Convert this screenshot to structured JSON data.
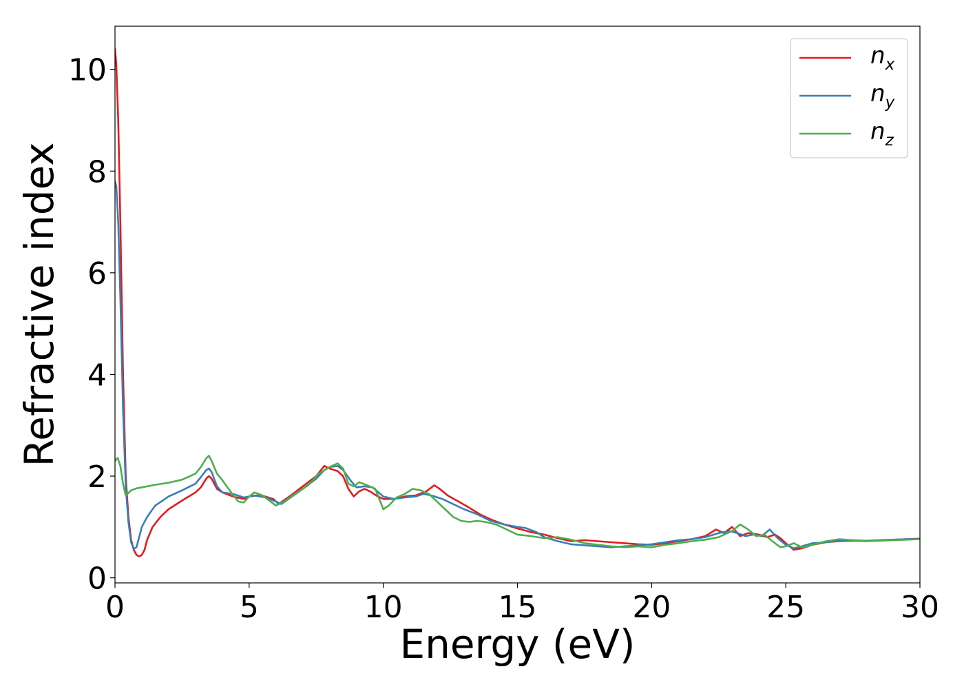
{
  "chart_data": {
    "type": "line",
    "title": "",
    "xlabel": "Energy (eV)",
    "ylabel": "Refractive index",
    "xlim": [
      0,
      30
    ],
    "ylim": [
      -0.1,
      10.85
    ],
    "xticks": [
      0,
      5,
      10,
      15,
      20,
      25,
      30
    ],
    "yticks": [
      0,
      2,
      4,
      6,
      8,
      10
    ],
    "legend_position": "top-right",
    "grid": false,
    "series": [
      {
        "name": "n",
        "subscript": "x",
        "color": "#e41a1c",
        "points": [
          [
            0,
            10.4
          ],
          [
            0.05,
            10.1
          ],
          [
            0.12,
            9.0
          ],
          [
            0.2,
            7.0
          ],
          [
            0.3,
            4.0
          ],
          [
            0.4,
            2.0
          ],
          [
            0.5,
            1.2
          ],
          [
            0.6,
            0.75
          ],
          [
            0.7,
            0.55
          ],
          [
            0.8,
            0.45
          ],
          [
            0.9,
            0.42
          ],
          [
            1.0,
            0.45
          ],
          [
            1.1,
            0.55
          ],
          [
            1.2,
            0.75
          ],
          [
            1.4,
            1.0
          ],
          [
            1.7,
            1.2
          ],
          [
            2.0,
            1.35
          ],
          [
            2.5,
            1.52
          ],
          [
            3.0,
            1.68
          ],
          [
            3.2,
            1.78
          ],
          [
            3.4,
            1.95
          ],
          [
            3.5,
            2.0
          ],
          [
            3.6,
            1.95
          ],
          [
            3.8,
            1.75
          ],
          [
            4.0,
            1.68
          ],
          [
            4.4,
            1.6
          ],
          [
            4.8,
            1.55
          ],
          [
            5.0,
            1.6
          ],
          [
            5.3,
            1.62
          ],
          [
            5.6,
            1.6
          ],
          [
            5.9,
            1.55
          ],
          [
            6.1,
            1.45
          ],
          [
            6.5,
            1.6
          ],
          [
            7.0,
            1.8
          ],
          [
            7.5,
            2.0
          ],
          [
            7.8,
            2.2
          ],
          [
            8.0,
            2.15
          ],
          [
            8.3,
            2.1
          ],
          [
            8.5,
            2.0
          ],
          [
            8.7,
            1.75
          ],
          [
            8.9,
            1.6
          ],
          [
            9.1,
            1.7
          ],
          [
            9.3,
            1.75
          ],
          [
            9.5,
            1.7
          ],
          [
            9.8,
            1.6
          ],
          [
            10.0,
            1.55
          ],
          [
            10.4,
            1.55
          ],
          [
            10.8,
            1.6
          ],
          [
            11.2,
            1.62
          ],
          [
            11.6,
            1.7
          ],
          [
            11.9,
            1.82
          ],
          [
            12.1,
            1.75
          ],
          [
            12.4,
            1.62
          ],
          [
            12.8,
            1.5
          ],
          [
            13.2,
            1.38
          ],
          [
            13.6,
            1.25
          ],
          [
            14.0,
            1.15
          ],
          [
            14.5,
            1.05
          ],
          [
            15.0,
            0.97
          ],
          [
            15.5,
            0.9
          ],
          [
            16.0,
            0.85
          ],
          [
            16.5,
            0.78
          ],
          [
            17.0,
            0.72
          ],
          [
            17.5,
            0.74
          ],
          [
            18.0,
            0.72
          ],
          [
            18.5,
            0.7
          ],
          [
            19.0,
            0.68
          ],
          [
            19.5,
            0.66
          ],
          [
            20.0,
            0.65
          ],
          [
            20.5,
            0.68
          ],
          [
            21.0,
            0.72
          ],
          [
            21.5,
            0.76
          ],
          [
            22.0,
            0.82
          ],
          [
            22.4,
            0.95
          ],
          [
            22.7,
            0.88
          ],
          [
            23.0,
            1.0
          ],
          [
            23.3,
            0.82
          ],
          [
            23.6,
            0.88
          ],
          [
            24.0,
            0.85
          ],
          [
            24.3,
            0.8
          ],
          [
            24.6,
            0.85
          ],
          [
            24.8,
            0.78
          ],
          [
            25.0,
            0.68
          ],
          [
            25.3,
            0.55
          ],
          [
            25.6,
            0.58
          ],
          [
            26.0,
            0.65
          ],
          [
            26.5,
            0.7
          ],
          [
            27.0,
            0.72
          ],
          [
            27.5,
            0.73
          ],
          [
            28.0,
            0.72
          ],
          [
            28.5,
            0.74
          ],
          [
            29.0,
            0.75
          ],
          [
            29.5,
            0.76
          ],
          [
            30.0,
            0.77
          ]
        ]
      },
      {
        "name": "n",
        "subscript": "y",
        "color": "#377eb8",
        "points": [
          [
            0,
            7.8
          ],
          [
            0.05,
            7.7
          ],
          [
            0.12,
            7.0
          ],
          [
            0.2,
            5.5
          ],
          [
            0.3,
            3.3
          ],
          [
            0.4,
            1.8
          ],
          [
            0.5,
            1.1
          ],
          [
            0.6,
            0.7
          ],
          [
            0.7,
            0.57
          ],
          [
            0.8,
            0.6
          ],
          [
            0.9,
            0.8
          ],
          [
            1.0,
            1.0
          ],
          [
            1.2,
            1.2
          ],
          [
            1.5,
            1.42
          ],
          [
            2.0,
            1.6
          ],
          [
            2.5,
            1.72
          ],
          [
            3.0,
            1.85
          ],
          [
            3.2,
            1.98
          ],
          [
            3.4,
            2.12
          ],
          [
            3.5,
            2.15
          ],
          [
            3.6,
            2.08
          ],
          [
            3.8,
            1.8
          ],
          [
            4.0,
            1.68
          ],
          [
            4.4,
            1.65
          ],
          [
            4.8,
            1.58
          ],
          [
            5.2,
            1.62
          ],
          [
            5.6,
            1.58
          ],
          [
            6.0,
            1.5
          ],
          [
            6.2,
            1.45
          ],
          [
            6.6,
            1.6
          ],
          [
            7.0,
            1.75
          ],
          [
            7.5,
            1.95
          ],
          [
            7.8,
            2.12
          ],
          [
            8.0,
            2.18
          ],
          [
            8.3,
            2.2
          ],
          [
            8.5,
            2.12
          ],
          [
            8.8,
            1.9
          ],
          [
            9.0,
            1.78
          ],
          [
            9.3,
            1.8
          ],
          [
            9.6,
            1.78
          ],
          [
            10.0,
            1.6
          ],
          [
            10.4,
            1.55
          ],
          [
            10.8,
            1.58
          ],
          [
            11.2,
            1.6
          ],
          [
            11.5,
            1.65
          ],
          [
            11.8,
            1.62
          ],
          [
            12.2,
            1.55
          ],
          [
            12.6,
            1.45
          ],
          [
            13.0,
            1.35
          ],
          [
            13.5,
            1.25
          ],
          [
            14.0,
            1.12
          ],
          [
            14.5,
            1.05
          ],
          [
            15.0,
            1.0
          ],
          [
            15.3,
            0.98
          ],
          [
            15.7,
            0.9
          ],
          [
            16.0,
            0.8
          ],
          [
            16.5,
            0.72
          ],
          [
            17.0,
            0.66
          ],
          [
            17.5,
            0.64
          ],
          [
            18.0,
            0.62
          ],
          [
            18.5,
            0.6
          ],
          [
            19.0,
            0.62
          ],
          [
            19.5,
            0.64
          ],
          [
            20.0,
            0.66
          ],
          [
            20.5,
            0.7
          ],
          [
            21.0,
            0.74
          ],
          [
            21.5,
            0.76
          ],
          [
            22.0,
            0.8
          ],
          [
            22.5,
            0.88
          ],
          [
            22.9,
            0.92
          ],
          [
            23.2,
            0.88
          ],
          [
            23.5,
            0.82
          ],
          [
            23.8,
            0.85
          ],
          [
            24.1,
            0.82
          ],
          [
            24.4,
            0.95
          ],
          [
            24.7,
            0.78
          ],
          [
            25.0,
            0.65
          ],
          [
            25.3,
            0.58
          ],
          [
            25.6,
            0.62
          ],
          [
            26.0,
            0.68
          ],
          [
            26.5,
            0.7
          ],
          [
            27.0,
            0.73
          ],
          [
            27.5,
            0.74
          ],
          [
            28.0,
            0.73
          ],
          [
            28.5,
            0.74
          ],
          [
            29.0,
            0.75
          ],
          [
            29.5,
            0.76
          ],
          [
            30.0,
            0.76
          ]
        ]
      },
      {
        "name": "n",
        "subscript": "z",
        "color": "#4daf4a",
        "points": [
          [
            0,
            2.3
          ],
          [
            0.1,
            2.36
          ],
          [
            0.2,
            2.2
          ],
          [
            0.3,
            1.85
          ],
          [
            0.4,
            1.62
          ],
          [
            0.6,
            1.72
          ],
          [
            0.8,
            1.76
          ],
          [
            1.0,
            1.78
          ],
          [
            1.5,
            1.83
          ],
          [
            2.0,
            1.87
          ],
          [
            2.5,
            1.93
          ],
          [
            3.0,
            2.05
          ],
          [
            3.2,
            2.18
          ],
          [
            3.4,
            2.35
          ],
          [
            3.5,
            2.4
          ],
          [
            3.6,
            2.3
          ],
          [
            3.8,
            2.05
          ],
          [
            4.0,
            1.92
          ],
          [
            4.3,
            1.7
          ],
          [
            4.6,
            1.5
          ],
          [
            4.8,
            1.48
          ],
          [
            5.0,
            1.6
          ],
          [
            5.2,
            1.68
          ],
          [
            5.5,
            1.62
          ],
          [
            5.8,
            1.5
          ],
          [
            6.0,
            1.42
          ],
          [
            6.3,
            1.5
          ],
          [
            6.7,
            1.65
          ],
          [
            7.2,
            1.82
          ],
          [
            7.6,
            2.05
          ],
          [
            8.0,
            2.18
          ],
          [
            8.3,
            2.25
          ],
          [
            8.5,
            2.15
          ],
          [
            8.7,
            1.85
          ],
          [
            8.9,
            1.8
          ],
          [
            9.1,
            1.88
          ],
          [
            9.4,
            1.82
          ],
          [
            9.7,
            1.75
          ],
          [
            10.0,
            1.35
          ],
          [
            10.2,
            1.42
          ],
          [
            10.5,
            1.58
          ],
          [
            10.8,
            1.65
          ],
          [
            11.1,
            1.75
          ],
          [
            11.4,
            1.72
          ],
          [
            11.7,
            1.65
          ],
          [
            12.0,
            1.5
          ],
          [
            12.3,
            1.35
          ],
          [
            12.6,
            1.2
          ],
          [
            12.9,
            1.12
          ],
          [
            13.2,
            1.1
          ],
          [
            13.5,
            1.12
          ],
          [
            13.8,
            1.1
          ],
          [
            14.2,
            1.05
          ],
          [
            14.6,
            0.95
          ],
          [
            15.0,
            0.85
          ],
          [
            15.5,
            0.82
          ],
          [
            16.0,
            0.78
          ],
          [
            16.5,
            0.8
          ],
          [
            17.0,
            0.75
          ],
          [
            17.5,
            0.68
          ],
          [
            18.0,
            0.65
          ],
          [
            18.5,
            0.62
          ],
          [
            19.0,
            0.6
          ],
          [
            19.5,
            0.62
          ],
          [
            20.0,
            0.6
          ],
          [
            20.5,
            0.65
          ],
          [
            21.0,
            0.68
          ],
          [
            21.5,
            0.72
          ],
          [
            22.0,
            0.75
          ],
          [
            22.5,
            0.8
          ],
          [
            23.0,
            0.92
          ],
          [
            23.3,
            1.05
          ],
          [
            23.6,
            0.95
          ],
          [
            23.9,
            0.82
          ],
          [
            24.2,
            0.85
          ],
          [
            24.5,
            0.72
          ],
          [
            24.8,
            0.6
          ],
          [
            25.0,
            0.62
          ],
          [
            25.3,
            0.68
          ],
          [
            25.6,
            0.6
          ],
          [
            26.0,
            0.65
          ],
          [
            26.5,
            0.72
          ],
          [
            27.0,
            0.76
          ],
          [
            27.5,
            0.74
          ],
          [
            28.0,
            0.72
          ],
          [
            28.5,
            0.73
          ],
          [
            29.0,
            0.74
          ],
          [
            29.5,
            0.75
          ],
          [
            30.0,
            0.76
          ]
        ]
      }
    ]
  }
}
